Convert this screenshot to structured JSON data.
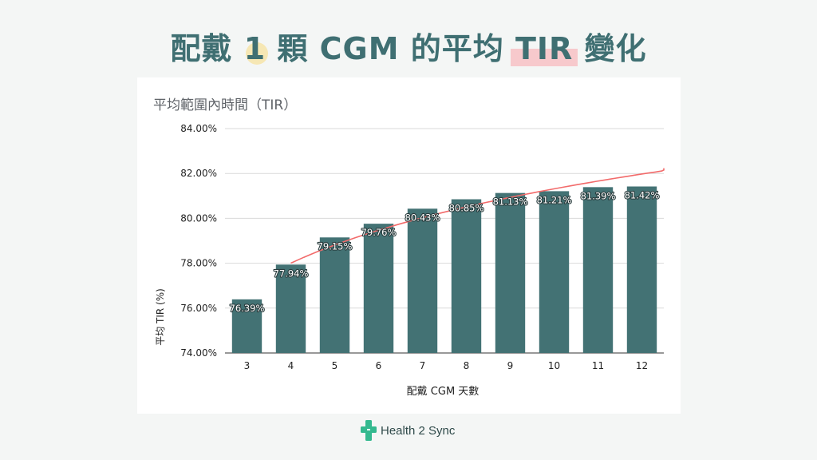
{
  "title": {
    "part1": "配戴 ",
    "number": "1",
    "part2": " 顆 CGM 的平均 ",
    "highlight": "TIR",
    "part3": " 變化"
  },
  "brand": {
    "name": "Health 2 Sync",
    "logo_icon": "cross-logo-icon",
    "color": "#34b98f"
  },
  "chart_data": {
    "type": "bar",
    "title": "平均範圍內時間（TIR）",
    "xlabel": "配戴 CGM 天數",
    "ylabel": "平均 TIR (%)",
    "ylim": [
      74,
      84
    ],
    "yticks": [
      "74.00%",
      "76.00%",
      "78.00%",
      "80.00%",
      "82.00%",
      "84.00%"
    ],
    "categories": [
      "3",
      "4",
      "5",
      "6",
      "7",
      "8",
      "9",
      "10",
      "11",
      "12"
    ],
    "values": [
      76.39,
      77.94,
      79.15,
      79.76,
      80.43,
      80.85,
      81.13,
      81.21,
      81.39,
      81.42
    ],
    "data_labels": [
      "76.39%",
      "77.94%",
      "79.15%",
      "79.76%",
      "80.43%",
      "80.85%",
      "81.13%",
      "81.21%",
      "81.39%",
      "81.42%"
    ],
    "bar_color": "#437274",
    "trendline": {
      "type": "logarithmic",
      "color": "#f26b6b",
      "from_x": 4,
      "to_x": 12.9
    },
    "grid": true,
    "legend": "none"
  }
}
